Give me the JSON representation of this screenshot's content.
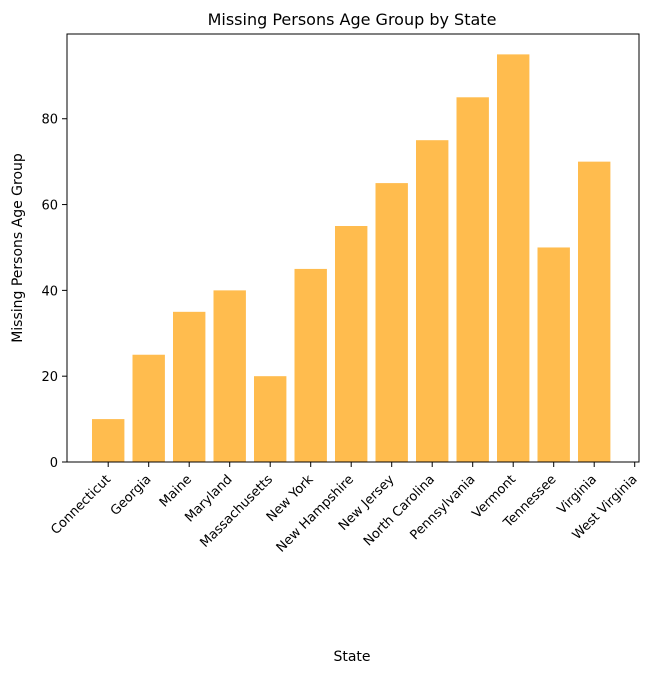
{
  "chart_data": {
    "type": "bar",
    "title": "Missing Persons Age Group by State",
    "xlabel": "State",
    "ylabel": "Missing Persons Age Group",
    "categories": [
      "Connecticut",
      "Georgia",
      "Maine",
      "Maryland",
      "Massachusetts",
      "New York",
      "New Hampshire",
      "New Jersey",
      "North Carolina",
      "Pennsylvania",
      "Vermont",
      "Tennessee",
      "Virginia",
      "West Virginia"
    ],
    "values": [
      10,
      25,
      35,
      40,
      20,
      45,
      55,
      65,
      75,
      85,
      95,
      50,
      70,
      null
    ],
    "bar_color": "#ffbc4e",
    "ylim": [
      0,
      99.75
    ],
    "yticks": [
      0,
      20,
      40,
      60,
      80
    ],
    "grid": false,
    "legend": "none"
  }
}
